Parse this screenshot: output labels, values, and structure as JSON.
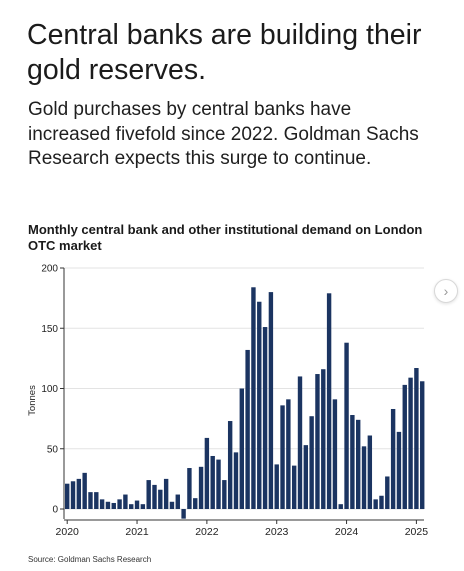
{
  "headline": "Central banks are building their gold reserves.",
  "subhead": "Gold purchases by central banks have increased fivefold since 2022. Goldman Sachs Research expects this surge to continue.",
  "source": "Source: Goldman Sachs Research",
  "next_button_icon": "chevron-right-icon",
  "chart_data": {
    "type": "bar",
    "title": "Monthly central bank and other institutional demand on London OTC market",
    "ylabel": "Tonnes",
    "xlabel": "",
    "ylim": [
      -10,
      200
    ],
    "yticks": [
      0,
      50,
      100,
      150,
      200
    ],
    "xticks": [
      "2020",
      "2021",
      "2022",
      "2023",
      "2024",
      "2025"
    ],
    "x_start": "2020-01",
    "bar_color": "#1b3461",
    "categories": [
      "2020-01",
      "2020-02",
      "2020-03",
      "2020-04",
      "2020-05",
      "2020-06",
      "2020-07",
      "2020-08",
      "2020-09",
      "2020-10",
      "2020-11",
      "2020-12",
      "2021-01",
      "2021-02",
      "2021-03",
      "2021-04",
      "2021-05",
      "2021-06",
      "2021-07",
      "2021-08",
      "2021-09",
      "2021-10",
      "2021-11",
      "2021-12",
      "2022-01",
      "2022-02",
      "2022-03",
      "2022-04",
      "2022-05",
      "2022-06",
      "2022-07",
      "2022-08",
      "2022-09",
      "2022-10",
      "2022-11",
      "2022-12",
      "2023-01",
      "2023-02",
      "2023-03",
      "2023-04",
      "2023-05",
      "2023-06",
      "2023-07",
      "2023-08",
      "2023-09",
      "2023-10",
      "2023-11",
      "2023-12",
      "2024-01",
      "2024-02",
      "2024-03",
      "2024-04",
      "2024-05",
      "2024-06",
      "2024-07",
      "2024-08",
      "2024-09",
      "2024-10",
      "2024-11",
      "2024-12",
      "2025-01",
      "2025-02"
    ],
    "values": [
      21,
      23,
      25,
      30,
      14,
      14,
      8,
      6,
      5,
      8,
      12,
      4,
      7,
      4,
      24,
      20,
      16,
      25,
      6,
      12,
      -8,
      34,
      9,
      35,
      59,
      44,
      41,
      24,
      73,
      47,
      100,
      132,
      184,
      172,
      151,
      180,
      37,
      86,
      91,
      36,
      110,
      53,
      77,
      112,
      116,
      179,
      91,
      4,
      138,
      78,
      74,
      52,
      61,
      8,
      11,
      27,
      83,
      64,
      103,
      109,
      117,
      106
    ]
  }
}
